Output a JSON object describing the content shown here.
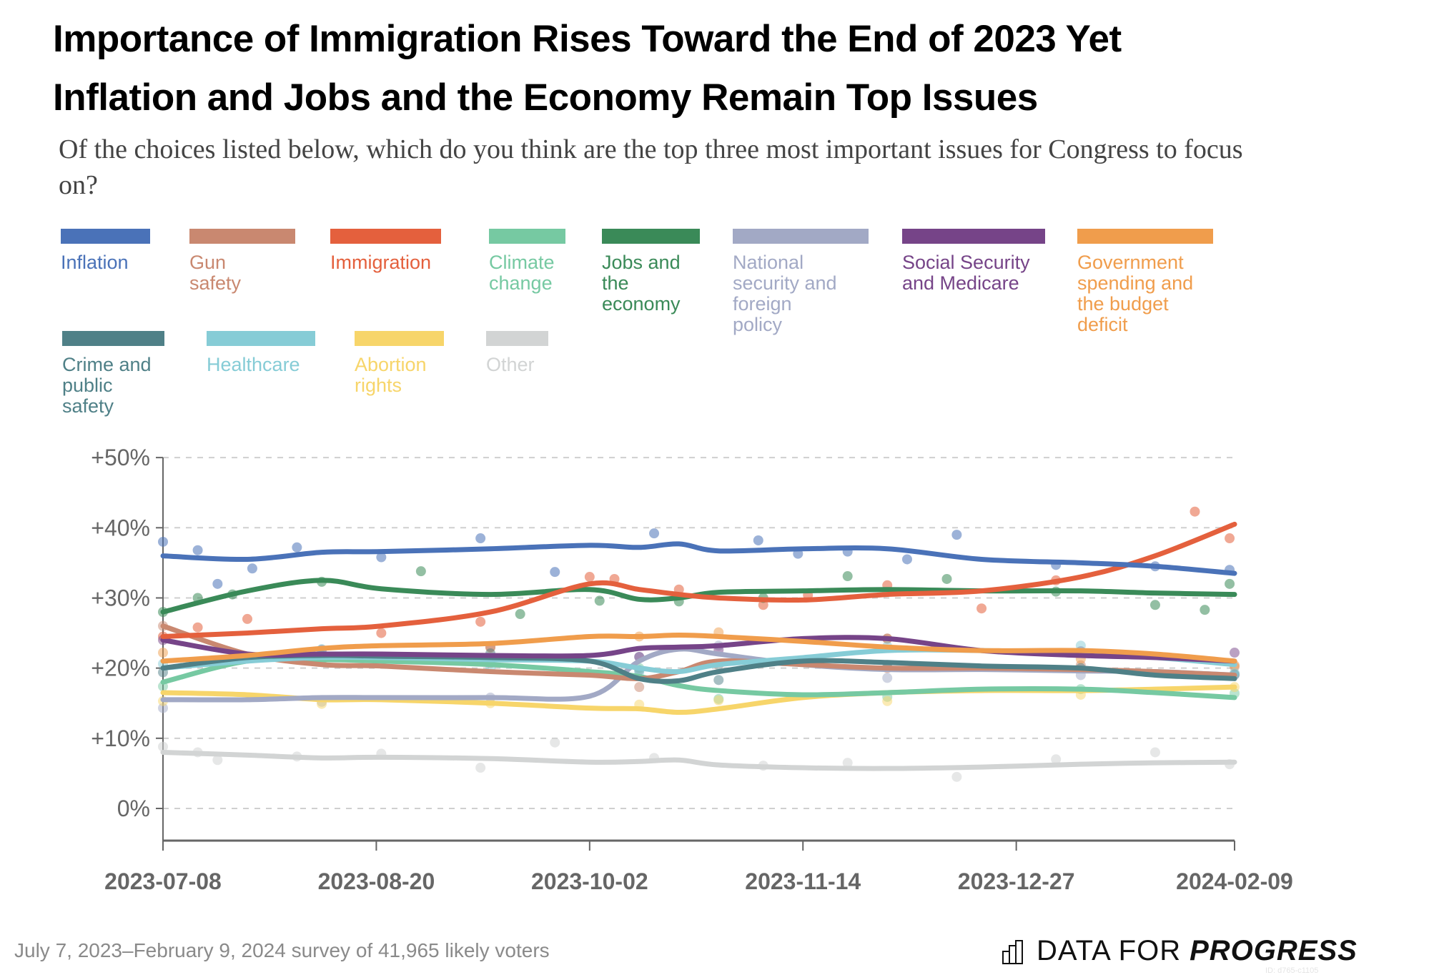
{
  "header": {
    "title_line1": "Importance of Immigration Rises Toward the End of 2023 Yet",
    "title_line2": "Inflation and Jobs and the Economy Remain Top Issues",
    "subtitle": "Of the choices listed below, which do you think are the top three most important issues for Congress to focus on?"
  },
  "footer": {
    "note": "July 7, 2023–February 9, 2024 survey of 41,965 likely voters",
    "brand_light": "DATA FOR",
    "brand_bold": "PROGRESS",
    "brand_icon": "bar-chart-icon",
    "chart_id": "ID: d765-c1105"
  },
  "chart_data": {
    "type": "line",
    "title": "Importance of Immigration Rises Toward the End of 2023 Yet Inflation and Jobs and the Economy Remain Top Issues",
    "subtitle": "Of the choices listed below, which do you think are the top three most important issues for Congress to focus on?",
    "xlabel": "",
    "ylabel": "",
    "x_start": "2023-07-08",
    "x_end": "2024-02-09",
    "x_ticks": [
      "2023-07-08",
      "2023-08-20",
      "2023-10-02",
      "2023-11-14",
      "2023-12-27",
      "2024-02-09"
    ],
    "y_ticks": [
      0,
      10,
      20,
      30,
      40,
      50
    ],
    "y_tick_labels": [
      "0%",
      "+10%",
      "+20%",
      "+30%",
      "+40%",
      "+50%"
    ],
    "ylim": [
      -6,
      50
    ],
    "grid": true,
    "legend_position": "top",
    "x_days": [
      0,
      17,
      32,
      44,
      66,
      86,
      96,
      104,
      112,
      129,
      146,
      165,
      185,
      200,
      216
    ],
    "series": [
      {
        "name": "Inflation",
        "color": "#4a72b8",
        "values": [
          36.0,
          35.5,
          36.5,
          36.6,
          37.0,
          37.5,
          37.2,
          37.7,
          36.7,
          37.0,
          37.0,
          35.5,
          35.0,
          34.5,
          33.5
        ]
      },
      {
        "name": "Gun safety",
        "color": "#c98870",
        "values": [
          26.0,
          22.0,
          20.5,
          20.3,
          19.5,
          19.0,
          18.5,
          19.5,
          21.0,
          20.5,
          20.0,
          20.0,
          19.8,
          19.5,
          19.0
        ]
      },
      {
        "name": "Immigration",
        "color": "#e4603d",
        "values": [
          24.5,
          25.0,
          25.6,
          26.0,
          28.0,
          32.0,
          31.2,
          30.5,
          30.0,
          29.7,
          30.5,
          31.0,
          33.0,
          36.0,
          40.5
        ]
      },
      {
        "name": "Climate change",
        "color": "#76c9a2",
        "values": [
          18.0,
          21.0,
          21.2,
          21.0,
          20.5,
          19.5,
          18.8,
          17.5,
          16.8,
          16.2,
          16.5,
          17.0,
          17.0,
          16.5,
          15.8
        ]
      },
      {
        "name": "Jobs and the economy",
        "color": "#3a8a58",
        "values": [
          28.0,
          31.0,
          32.5,
          31.3,
          30.5,
          31.2,
          29.8,
          30.0,
          30.8,
          31.0,
          31.2,
          31.0,
          31.0,
          30.7,
          30.5
        ]
      },
      {
        "name": "National security and foreign policy",
        "color": "#a2a9c5",
        "values": [
          15.5,
          15.5,
          15.8,
          15.8,
          15.8,
          16.0,
          21.0,
          22.7,
          22.0,
          20.5,
          19.8,
          19.8,
          19.6,
          19.5,
          19.0
        ]
      },
      {
        "name": "Social Security and Medicare",
        "color": "#764488",
        "values": [
          24.0,
          22.0,
          22.0,
          22.0,
          21.8,
          21.8,
          22.8,
          23.0,
          23.2,
          24.2,
          24.2,
          22.5,
          21.8,
          21.5,
          21.0
        ]
      },
      {
        "name": "Government spending and the budget deficit",
        "color": "#f09d4c",
        "values": [
          21.0,
          21.8,
          22.8,
          23.2,
          23.5,
          24.5,
          24.5,
          24.7,
          24.5,
          23.8,
          23.0,
          22.5,
          22.5,
          22.0,
          21.0
        ]
      },
      {
        "name": "Crime and public safety",
        "color": "#4f8087",
        "values": [
          20.0,
          21.5,
          21.8,
          21.7,
          21.5,
          21.0,
          18.5,
          18.2,
          19.5,
          21.0,
          20.8,
          20.3,
          20.0,
          19.0,
          18.5
        ]
      },
      {
        "name": "Healthcare",
        "color": "#86ccd6",
        "values": [
          20.0,
          21.0,
          21.5,
          21.5,
          21.2,
          21.0,
          20.0,
          19.5,
          20.5,
          21.5,
          22.5,
          22.5,
          22.0,
          21.5,
          20.5
        ]
      },
      {
        "name": "Abortion rights",
        "color": "#f7d56a",
        "values": [
          16.5,
          16.2,
          15.5,
          15.5,
          15.0,
          14.3,
          14.2,
          13.7,
          14.2,
          15.8,
          16.5,
          16.8,
          16.8,
          17.0,
          17.3
        ]
      },
      {
        "name": "Other",
        "color": "#d2d4d4",
        "values": [
          8.0,
          7.6,
          7.2,
          7.3,
          7.1,
          6.6,
          6.7,
          6.9,
          6.2,
          5.8,
          5.7,
          5.9,
          6.3,
          6.5,
          6.6
        ]
      }
    ],
    "points": [
      {
        "series": "Inflation",
        "x_days": [
          0,
          7,
          11,
          18,
          27,
          44,
          64,
          79,
          99,
          120,
          128,
          138,
          150,
          160,
          180,
          200,
          215
        ],
        "values": [
          38,
          36.8,
          32,
          34.2,
          37.2,
          35.8,
          38.5,
          33.7,
          39.2,
          38.2,
          36.3,
          36.6,
          35.5,
          39.0,
          34.7,
          34.5,
          34.0
        ]
      },
      {
        "series": "Immigration",
        "x_days": [
          0,
          7,
          17,
          44,
          64,
          86,
          91,
          104,
          121,
          130,
          146,
          165,
          180,
          208,
          215
        ],
        "values": [
          24.5,
          25.8,
          27.0,
          25.0,
          26.6,
          33.0,
          32.7,
          31.2,
          29.0,
          30.4,
          31.8,
          28.5,
          32.5,
          42.3,
          38.5
        ]
      },
      {
        "series": "Jobs and the economy",
        "x_days": [
          0,
          7,
          14,
          32,
          52,
          72,
          88,
          104,
          121,
          138,
          158,
          180,
          200,
          210,
          215
        ],
        "values": [
          28,
          30,
          30.5,
          32.3,
          33.8,
          27.7,
          29.6,
          29.5,
          30.0,
          33.1,
          32.7,
          30.9,
          29.0,
          28.3,
          32.0
        ]
      },
      {
        "series": "Other",
        "x_days": [
          0,
          7,
          11,
          27,
          44,
          64,
          79,
          99,
          121,
          138,
          160,
          180,
          200,
          215
        ],
        "values": [
          8.8,
          8.0,
          6.9,
          7.4,
          7.8,
          5.8,
          9.4,
          7.2,
          6.1,
          6.5,
          4.5,
          7.0,
          8.0,
          6.3
        ]
      }
    ]
  }
}
